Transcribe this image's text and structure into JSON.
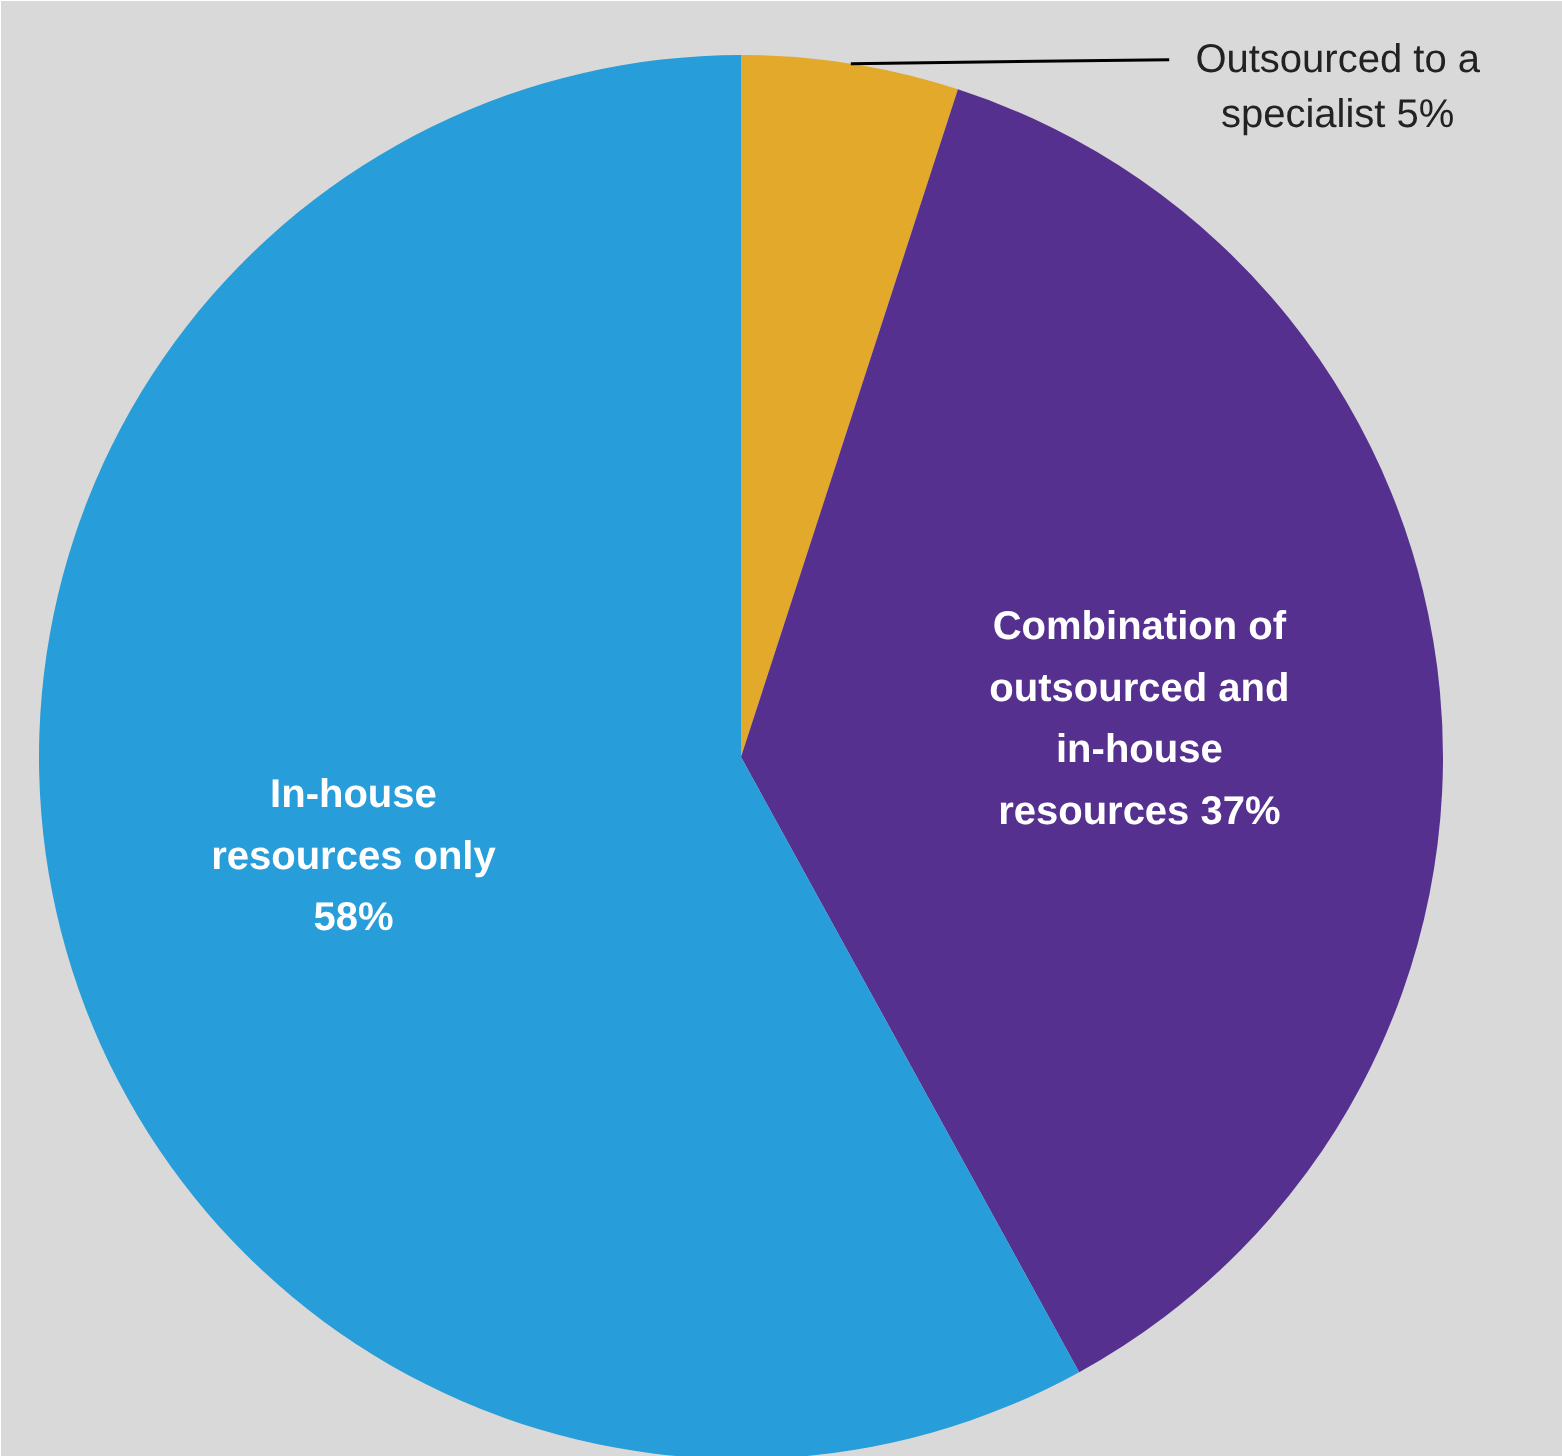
{
  "chart_data": {
    "type": "pie",
    "categories": [
      "Outsourced to a specialist",
      "Combination of outsourced and in-house resources",
      "In-house resources only"
    ],
    "values": [
      5,
      37,
      58
    ],
    "value_labels": [
      "5%",
      "37%",
      "58%"
    ],
    "colors": [
      "#e3a92a",
      "#55308f",
      "#279dd9"
    ]
  }
}
